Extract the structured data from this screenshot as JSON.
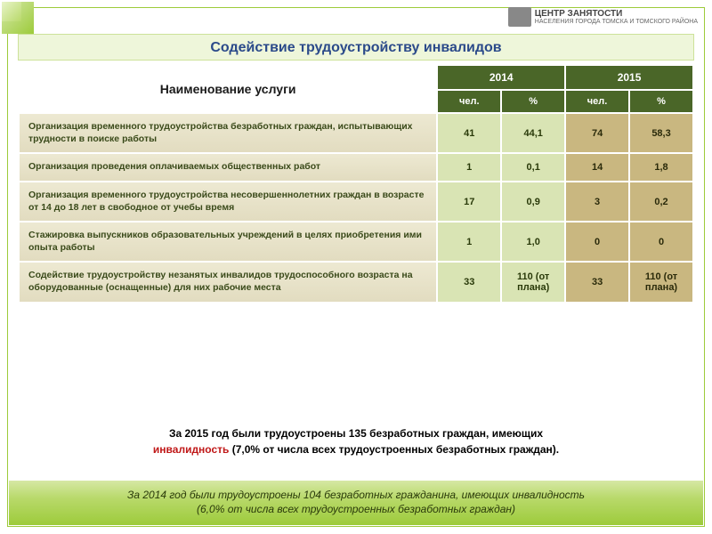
{
  "logo": {
    "line1": "ЦЕНТР ЗАНЯТОСТИ",
    "line2": "НАСЕЛЕНИЯ ГОРОДА ТОМСКА И ТОМСКОГО РАЙОНА"
  },
  "title": "Содействие трудоустройству инвалидов",
  "table": {
    "header_service": "Наименование услуги",
    "year_2014": "2014",
    "year_2015": "2015",
    "sub_people": "чел.",
    "sub_percent": "%",
    "rows": [
      {
        "label": "Организация временного трудоустройства безработных граждан, испытывающих трудности в поиске работы",
        "p2014": "41",
        "pct2014": "44,1",
        "p2015": "74",
        "pct2015": "58,3"
      },
      {
        "label": "Организация проведения оплачиваемых общественных работ",
        "p2014": "1",
        "pct2014": "0,1",
        "p2015": "14",
        "pct2015": "1,8"
      },
      {
        "label": "Организация временного трудоустройства несовершеннолетних граждан в возрасте от 14 до 18 лет в свободное от учебы время",
        "p2014": "17",
        "pct2014": "0,9",
        "p2015": "3",
        "pct2015": "0,2"
      },
      {
        "label": "Стажировка выпускников образовательных учреждений в целях приобретения ими опыта работы",
        "p2014": "1",
        "pct2014": "1,0",
        "p2015": "0",
        "pct2015": "0"
      },
      {
        "label": "Содействие трудоустройству незанятых инвалидов трудоспособного возраста на оборудованные (оснащенные) для них рабочие места",
        "p2014": "33",
        "pct2014": "110 (от плана)",
        "p2015": "33",
        "pct2015": "110 (от плана)"
      }
    ]
  },
  "summary_2015": {
    "part1": "За 2015 год были трудоустроены 135 безработных граждан, имеющих",
    "part2_red": "инвалидность",
    "part3": " (7,0% от числа всех трудоустроенных безработных граждан)."
  },
  "footer": {
    "line1": "За 2014 год были трудоустроены 104 безработных гражданина, имеющих инвалидность",
    "line2": "(6,0% от числа всех трудоустроенных безработных граждан)"
  },
  "colors": {
    "header_green": "#4a6628",
    "cell_2014_bg": "#d9e4b4",
    "cell_2015_bg": "#c9b780",
    "row_label_bg": "#e8e4cc",
    "title_bar_bg": "#eef6da",
    "accent_green": "#9dcb3b",
    "footer_grad_top": "#d6e8a4",
    "footer_grad_bottom": "#9dcb3b",
    "title_color": "#2b4a8a",
    "red": "#c01818"
  }
}
